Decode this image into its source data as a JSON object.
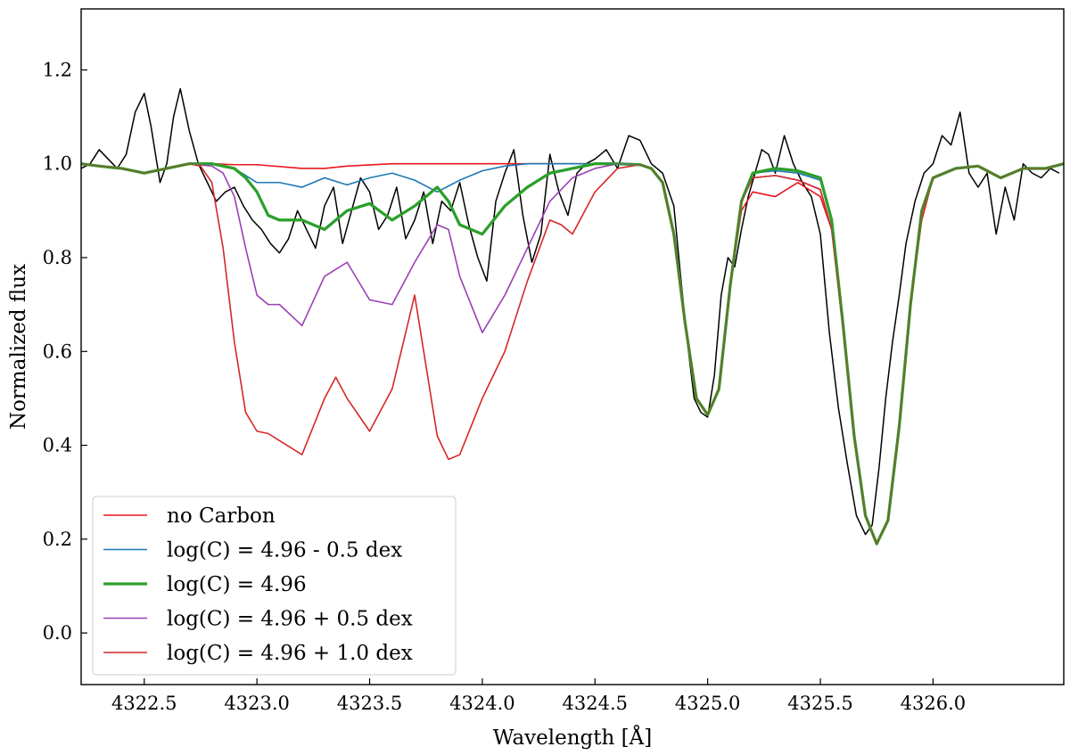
{
  "chart_data": {
    "type": "line",
    "title": "",
    "xlabel": "Wavelength [Å]",
    "ylabel": "Normalized flux",
    "xlim": [
      4322.22,
      4326.58
    ],
    "ylim": [
      -0.11,
      1.33
    ],
    "xticks": [
      4322.5,
      4323.0,
      4323.5,
      4324.0,
      4324.5,
      4325.0,
      4325.5,
      4326.0
    ],
    "xtick_labels": [
      "4322.5",
      "4323.0",
      "4323.5",
      "4324.0",
      "4324.5",
      "4325.0",
      "4325.5",
      "4326.0"
    ],
    "yticks": [
      0.0,
      0.2,
      0.4,
      0.6,
      0.8,
      1.0,
      1.2
    ],
    "ytick_labels": [
      "0.0",
      "0.2",
      "0.4",
      "0.6",
      "0.8",
      "1.0",
      "1.2"
    ],
    "grid": false,
    "legend_position": "lower-left",
    "observed": {
      "color": "#000000",
      "x": [
        4322.22,
        4322.26,
        4322.3,
        4322.34,
        4322.38,
        4322.42,
        4322.46,
        4322.5,
        4322.53,
        4322.57,
        4322.6,
        4322.63,
        4322.66,
        4322.7,
        4322.74,
        4322.78,
        4322.82,
        4322.86,
        4322.9,
        4322.94,
        4322.98,
        4323.02,
        4323.06,
        4323.1,
        4323.14,
        4323.18,
        4323.22,
        4323.26,
        4323.3,
        4323.34,
        4323.38,
        4323.42,
        4323.46,
        4323.5,
        4323.54,
        4323.58,
        4323.62,
        4323.66,
        4323.7,
        4323.74,
        4323.78,
        4323.82,
        4323.86,
        4323.9,
        4323.94,
        4323.98,
        4324.02,
        4324.06,
        4324.1,
        4324.14,
        4324.18,
        4324.22,
        4324.26,
        4324.3,
        4324.34,
        4324.38,
        4324.42,
        4324.46,
        4324.5,
        4324.55,
        4324.6,
        4324.65,
        4324.7,
        4324.75,
        4324.8,
        4324.85,
        4324.88,
        4324.91,
        4324.94,
        4324.97,
        4325.0,
        4325.03,
        4325.06,
        4325.09,
        4325.12,
        4325.15,
        4325.18,
        4325.21,
        4325.24,
        4325.27,
        4325.3,
        4325.34,
        4325.38,
        4325.42,
        4325.46,
        4325.5,
        4325.54,
        4325.58,
        4325.62,
        4325.66,
        4325.7,
        4325.73,
        4325.76,
        4325.79,
        4325.82,
        4325.85,
        4325.88,
        4325.92,
        4325.96,
        4326.0,
        4326.04,
        4326.08,
        4326.12,
        4326.16,
        4326.2,
        4326.24,
        4326.28,
        4326.32,
        4326.36,
        4326.4,
        4326.44,
        4326.48,
        4326.52,
        4326.56
      ],
      "y": [
        0.99,
        1.0,
        1.03,
        1.01,
        0.99,
        1.02,
        1.11,
        1.15,
        1.08,
        0.96,
        1.0,
        1.1,
        1.16,
        1.07,
        1.0,
        0.96,
        0.92,
        0.94,
        0.95,
        0.91,
        0.88,
        0.86,
        0.83,
        0.81,
        0.84,
        0.9,
        0.86,
        0.82,
        0.91,
        0.95,
        0.83,
        0.9,
        0.97,
        0.94,
        0.86,
        0.89,
        0.95,
        0.84,
        0.88,
        0.94,
        0.83,
        0.92,
        0.9,
        0.96,
        0.87,
        0.8,
        0.75,
        0.92,
        0.98,
        1.03,
        0.89,
        0.79,
        0.85,
        1.02,
        0.94,
        0.89,
        0.98,
        1.0,
        1.01,
        1.03,
        0.99,
        1.06,
        1.05,
        1.0,
        0.98,
        0.91,
        0.76,
        0.62,
        0.5,
        0.47,
        0.46,
        0.55,
        0.72,
        0.8,
        0.78,
        0.86,
        0.93,
        0.98,
        1.03,
        1.02,
        0.98,
        1.06,
        1.0,
        0.96,
        0.93,
        0.85,
        0.64,
        0.48,
        0.36,
        0.25,
        0.21,
        0.23,
        0.35,
        0.5,
        0.62,
        0.72,
        0.83,
        0.92,
        0.98,
        1.0,
        1.06,
        1.04,
        1.11,
        0.98,
        0.95,
        0.98,
        0.85,
        0.95,
        0.88,
        1.0,
        0.98,
        0.97,
        0.99,
        0.98
      ]
    },
    "series": [
      {
        "name": "no Carbon",
        "color": "#e8171b",
        "width": 1.6,
        "x": [
          4322.22,
          4322.3,
          4322.4,
          4322.5,
          4322.6,
          4322.7,
          4322.8,
          4322.9,
          4323.0,
          4323.2,
          4323.3,
          4323.4,
          4323.6,
          4323.8,
          4324.0,
          4324.2,
          4324.4,
          4324.5,
          4324.6,
          4324.7,
          4324.75,
          4324.8,
          4324.85,
          4324.9,
          4324.95,
          4325.0,
          4325.05,
          4325.1,
          4325.15,
          4325.2,
          4325.3,
          4325.4,
          4325.5,
          4325.55,
          4325.6,
          4325.65,
          4325.7,
          4325.75,
          4325.8,
          4325.85,
          4325.9,
          4325.95,
          4326.0,
          4326.1,
          4326.2,
          4326.3,
          4326.4,
          4326.5,
          4326.58
        ],
        "y": [
          1.0,
          0.995,
          0.99,
          0.98,
          0.99,
          1.0,
          1.0,
          0.998,
          0.998,
          0.99,
          0.99,
          0.995,
          1.0,
          1.0,
          1.0,
          1.0,
          1.0,
          1.0,
          1.0,
          0.998,
          0.99,
          0.96,
          0.85,
          0.66,
          0.5,
          0.465,
          0.52,
          0.74,
          0.9,
          0.94,
          0.93,
          0.96,
          0.93,
          0.86,
          0.65,
          0.42,
          0.25,
          0.19,
          0.24,
          0.44,
          0.7,
          0.88,
          0.97,
          0.99,
          0.995,
          0.97,
          0.99,
          0.99,
          1.0
        ]
      },
      {
        "name": "log(C) = 4.96 - 0.5 dex",
        "color": "#1f77b4",
        "width": 1.6,
        "x": [
          4322.22,
          4322.3,
          4322.4,
          4322.5,
          4322.6,
          4322.7,
          4322.8,
          4322.9,
          4323.0,
          4323.1,
          4323.2,
          4323.3,
          4323.4,
          4323.5,
          4323.6,
          4323.7,
          4323.8,
          4323.9,
          4324.0,
          4324.1,
          4324.2,
          4324.3,
          4324.4,
          4324.5,
          4324.6,
          4324.7,
          4324.75,
          4324.8,
          4324.85,
          4324.9,
          4324.95,
          4325.0,
          4325.05,
          4325.1,
          4325.15,
          4325.2,
          4325.3,
          4325.4,
          4325.5,
          4325.55,
          4325.6,
          4325.65,
          4325.7,
          4325.75,
          4325.8,
          4325.85,
          4325.9,
          4325.95,
          4326.0,
          4326.1,
          4326.2,
          4326.3,
          4326.4,
          4326.5,
          4326.58
        ],
        "y": [
          1.0,
          0.995,
          0.99,
          0.98,
          0.99,
          1.0,
          1.0,
          0.99,
          0.96,
          0.96,
          0.95,
          0.97,
          0.955,
          0.97,
          0.98,
          0.965,
          0.94,
          0.965,
          0.985,
          0.995,
          1.0,
          1.0,
          1.0,
          1.0,
          1.0,
          0.998,
          0.99,
          0.96,
          0.85,
          0.66,
          0.5,
          0.465,
          0.52,
          0.74,
          0.92,
          0.98,
          0.985,
          0.98,
          0.965,
          0.88,
          0.66,
          0.42,
          0.25,
          0.19,
          0.24,
          0.44,
          0.7,
          0.9,
          0.97,
          0.99,
          0.995,
          0.97,
          0.99,
          0.99,
          1.0
        ]
      },
      {
        "name": "log(C) = 4.96",
        "color": "#2ca02c",
        "width": 3.2,
        "x": [
          4322.22,
          4322.3,
          4322.4,
          4322.5,
          4322.6,
          4322.7,
          4322.8,
          4322.9,
          4322.95,
          4323.0,
          4323.05,
          4323.1,
          4323.2,
          4323.3,
          4323.4,
          4323.5,
          4323.6,
          4323.7,
          4323.8,
          4323.85,
          4323.9,
          4324.0,
          4324.1,
          4324.2,
          4324.3,
          4324.4,
          4324.5,
          4324.6,
          4324.7,
          4324.75,
          4324.8,
          4324.85,
          4324.9,
          4324.95,
          4325.0,
          4325.05,
          4325.1,
          4325.15,
          4325.2,
          4325.3,
          4325.4,
          4325.5,
          4325.55,
          4325.6,
          4325.65,
          4325.7,
          4325.75,
          4325.8,
          4325.85,
          4325.9,
          4325.95,
          4326.0,
          4326.1,
          4326.2,
          4326.3,
          4326.4,
          4326.5,
          4326.58
        ],
        "y": [
          1.0,
          0.995,
          0.99,
          0.98,
          0.99,
          1.0,
          1.0,
          0.99,
          0.97,
          0.94,
          0.89,
          0.88,
          0.88,
          0.86,
          0.9,
          0.915,
          0.88,
          0.91,
          0.95,
          0.92,
          0.87,
          0.85,
          0.91,
          0.95,
          0.98,
          0.99,
          1.0,
          1.0,
          0.998,
          0.99,
          0.96,
          0.85,
          0.66,
          0.5,
          0.465,
          0.52,
          0.74,
          0.92,
          0.98,
          0.99,
          0.985,
          0.97,
          0.88,
          0.66,
          0.42,
          0.25,
          0.19,
          0.24,
          0.44,
          0.7,
          0.9,
          0.97,
          0.99,
          0.995,
          0.97,
          0.99,
          0.99,
          1.0
        ]
      },
      {
        "name": "log(C) = 4.96 + 0.5 dex",
        "color": "#9b3fb5",
        "width": 1.6,
        "x": [
          4322.22,
          4322.3,
          4322.4,
          4322.5,
          4322.6,
          4322.7,
          4322.8,
          4322.85,
          4322.9,
          4322.95,
          4323.0,
          4323.05,
          4323.1,
          4323.2,
          4323.3,
          4323.4,
          4323.5,
          4323.6,
          4323.7,
          4323.8,
          4323.85,
          4323.9,
          4324.0,
          4324.1,
          4324.2,
          4324.3,
          4324.4,
          4324.5,
          4324.6,
          4324.7,
          4324.75,
          4324.8,
          4324.85,
          4324.9,
          4324.95,
          4325.0,
          4325.05,
          4325.1,
          4325.15,
          4325.2,
          4325.3,
          4325.4,
          4325.5,
          4325.55,
          4325.6,
          4325.65,
          4325.7,
          4325.75,
          4325.8,
          4325.85,
          4325.9,
          4325.95,
          4326.0,
          4326.1,
          4326.2,
          4326.3,
          4326.4,
          4326.5,
          4326.58
        ],
        "y": [
          1.0,
          0.995,
          0.99,
          0.98,
          0.99,
          1.0,
          0.995,
          0.98,
          0.93,
          0.82,
          0.72,
          0.7,
          0.7,
          0.655,
          0.76,
          0.79,
          0.71,
          0.7,
          0.79,
          0.87,
          0.86,
          0.76,
          0.64,
          0.72,
          0.82,
          0.92,
          0.97,
          0.99,
          1.0,
          0.998,
          0.99,
          0.96,
          0.85,
          0.66,
          0.5,
          0.465,
          0.52,
          0.74,
          0.92,
          0.97,
          0.975,
          0.965,
          0.945,
          0.86,
          0.66,
          0.42,
          0.25,
          0.19,
          0.24,
          0.44,
          0.7,
          0.9,
          0.97,
          0.99,
          0.995,
          0.97,
          0.99,
          0.99,
          1.0
        ]
      },
      {
        "name": "log(C) = 4.96 + 1.0 dex",
        "color": "#d62728",
        "width": 1.6,
        "x": [
          4322.22,
          4322.3,
          4322.4,
          4322.5,
          4322.6,
          4322.7,
          4322.75,
          4322.8,
          4322.85,
          4322.9,
          4322.95,
          4323.0,
          4323.05,
          4323.1,
          4323.2,
          4323.3,
          4323.35,
          4323.4,
          4323.5,
          4323.6,
          4323.7,
          4323.8,
          4323.85,
          4323.9,
          4324.0,
          4324.1,
          4324.2,
          4324.3,
          4324.35,
          4324.4,
          4324.5,
          4324.6,
          4324.7,
          4324.75,
          4324.8,
          4324.85,
          4324.9,
          4324.95,
          4325.0,
          4325.05,
          4325.1,
          4325.15,
          4325.2,
          4325.3,
          4325.4,
          4325.5,
          4325.55,
          4325.6,
          4325.65,
          4325.7,
          4325.75,
          4325.8,
          4325.85,
          4325.9,
          4325.95,
          4326.0,
          4326.1,
          4326.2,
          4326.3,
          4326.4,
          4326.5,
          4326.58
        ],
        "y": [
          1.0,
          0.995,
          0.99,
          0.98,
          0.99,
          1.0,
          0.995,
          0.96,
          0.82,
          0.62,
          0.47,
          0.43,
          0.425,
          0.41,
          0.38,
          0.5,
          0.545,
          0.5,
          0.43,
          0.52,
          0.72,
          0.42,
          0.37,
          0.38,
          0.5,
          0.6,
          0.75,
          0.88,
          0.87,
          0.85,
          0.94,
          0.99,
          0.998,
          0.99,
          0.96,
          0.85,
          0.66,
          0.5,
          0.465,
          0.52,
          0.74,
          0.92,
          0.97,
          0.975,
          0.965,
          0.945,
          0.86,
          0.66,
          0.42,
          0.25,
          0.19,
          0.24,
          0.44,
          0.7,
          0.9,
          0.97,
          0.99,
          0.995,
          0.97,
          0.99,
          0.99,
          1.0
        ]
      }
    ]
  }
}
